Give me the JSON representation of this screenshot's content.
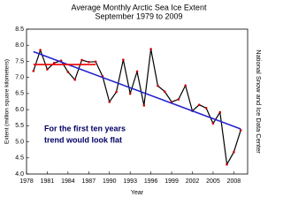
{
  "chart_data": {
    "type": "line",
    "title": "Average Monthly Arctic Sea Ice Extent",
    "subtitle": "September 1979 to 2009",
    "x_label": "Year",
    "y_label": "Extent (million square kilometers)",
    "source": "National Snow and Ice Data Center",
    "annotation": [
      "For the first ten years",
      "trend would look flat"
    ],
    "annotation_color": "#000066",
    "x": [
      1979,
      1980,
      1981,
      1982,
      1983,
      1984,
      1985,
      1986,
      1987,
      1988,
      1989,
      1990,
      1991,
      1992,
      1993,
      1994,
      1995,
      1996,
      1997,
      1998,
      1999,
      2000,
      2001,
      2002,
      2003,
      2004,
      2005,
      2006,
      2007,
      2008,
      2009
    ],
    "series": [
      {
        "name": "September extent",
        "color": "#000000",
        "marker_color": "#cc0000",
        "values": [
          7.2,
          7.85,
          7.25,
          7.45,
          7.52,
          7.17,
          6.93,
          7.54,
          7.48,
          7.49,
          7.04,
          6.24,
          6.55,
          7.55,
          6.5,
          7.18,
          6.13,
          7.88,
          6.74,
          6.56,
          6.24,
          6.32,
          6.75,
          5.96,
          6.15,
          6.05,
          5.57,
          5.92,
          4.3,
          4.68,
          5.36
        ]
      }
    ],
    "trend_lines": [
      {
        "color": "#2222cc",
        "x": [
          1979,
          2009
        ],
        "y": [
          7.8,
          5.4
        ]
      },
      {
        "color": "#ee0000",
        "x": [
          1979,
          1988
        ],
        "y": [
          7.4,
          7.4
        ]
      }
    ],
    "xlim": [
      1978,
      2010
    ],
    "xticks": [
      1978,
      1981,
      1984,
      1987,
      1990,
      1993,
      1996,
      1999,
      2002,
      2005,
      2008
    ],
    "ylim": [
      4,
      8.5
    ],
    "yticks": [
      {
        "value": 4,
        "label": "4.0"
      },
      4.5,
      {
        "value": 5,
        "label": "5.0"
      },
      5.5,
      {
        "value": 6,
        "label": "6.0"
      },
      6.5,
      {
        "value": 7,
        "label": "7.0"
      },
      7.5,
      {
        "value": 8,
        "label": "8.0"
      },
      8.5
    ]
  }
}
